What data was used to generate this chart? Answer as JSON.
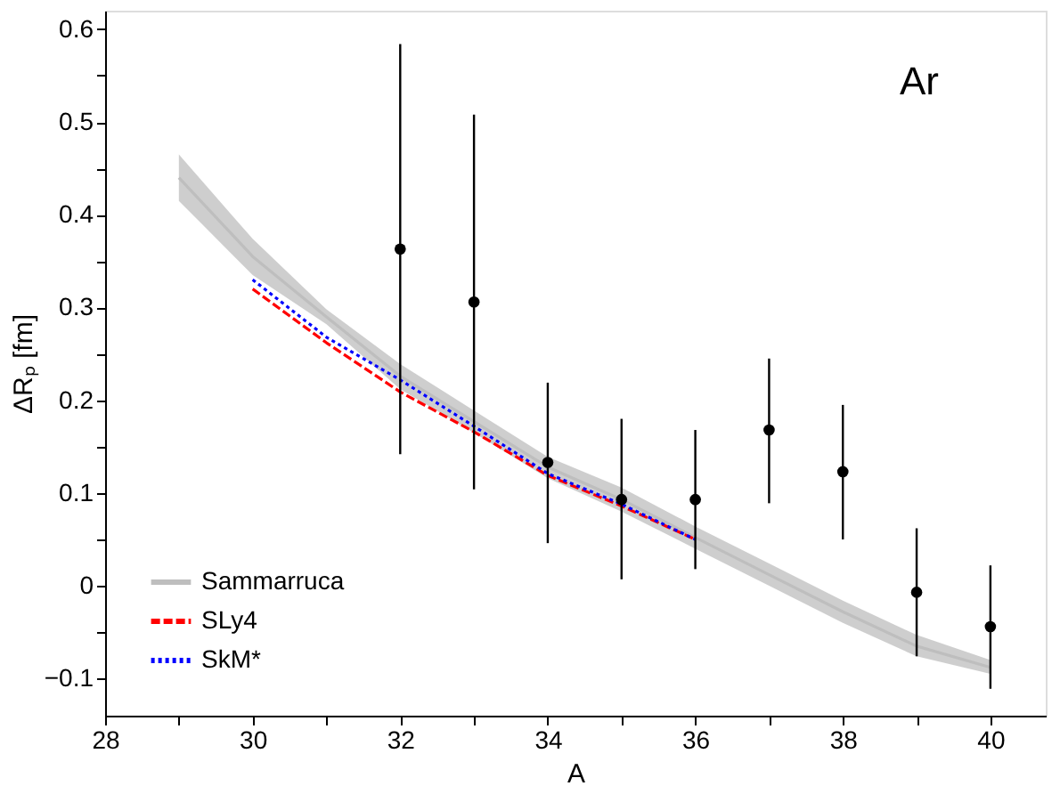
{
  "chart_data": {
    "type": "line",
    "xlabel": "A",
    "ylabel": "ΔRₚ [fm]",
    "annotations": [
      "Ar"
    ],
    "xlim": [
      28,
      40.75
    ],
    "ylim": [
      -0.14,
      0.62
    ],
    "xticks": [
      28,
      {
        "value": 29,
        "label": null
      },
      30,
      {
        "value": 31,
        "label": null
      },
      32,
      {
        "value": 33,
        "label": null
      },
      34,
      {
        "value": 35,
        "label": null
      },
      36,
      {
        "value": 37,
        "label": null
      },
      38,
      {
        "value": 39,
        "label": null
      },
      40
    ],
    "yticks": [
      -0.1,
      {
        "value": -0.05,
        "label": null
      },
      0,
      {
        "value": 0.05,
        "label": null
      },
      0.1,
      {
        "value": 0.15,
        "label": null
      },
      0.2,
      {
        "value": 0.25,
        "label": null
      },
      0.3,
      {
        "value": 0.35,
        "label": null
      },
      0.4,
      {
        "value": 0.45,
        "label": null
      },
      0.5,
      {
        "value": 0.55,
        "label": null
      },
      0.6
    ],
    "grid": false,
    "legend": "bottom left",
    "series": [
      {
        "name": "Sammarruca",
        "color": "#bebebe",
        "x": [
          29,
          30,
          31,
          32,
          33,
          34,
          35,
          36,
          37,
          38,
          39,
          40
        ],
        "values": [
          0.44,
          0.355,
          0.29,
          0.226,
          0.177,
          0.128,
          0.093,
          0.052,
          0.012,
          -0.028,
          -0.065,
          -0.088
        ],
        "lower": [
          0.415,
          0.335,
          0.282,
          0.212,
          0.165,
          0.116,
          0.08,
          0.04,
          0.0,
          -0.04,
          -0.076,
          -0.095
        ],
        "upper": [
          0.465,
          0.374,
          0.298,
          0.239,
          0.189,
          0.139,
          0.106,
          0.064,
          0.024,
          -0.016,
          -0.053,
          -0.08
        ]
      },
      {
        "name": "SLy4",
        "color": "#ff0000",
        "line_style": "dashed",
        "x": [
          30,
          31,
          32,
          33,
          34,
          35,
          36
        ],
        "values": [
          0.32,
          0.262,
          0.209,
          0.166,
          0.119,
          0.086,
          0.05
        ]
      },
      {
        "name": "SkM*",
        "color": "#0000ff",
        "line_style": "dotted",
        "x": [
          30,
          31,
          32,
          33,
          34,
          35,
          36
        ],
        "values": [
          0.33,
          0.268,
          0.222,
          0.172,
          0.121,
          0.088,
          0.05
        ]
      },
      {
        "type": "scatter",
        "color": "#000000",
        "marker": "circle",
        "x": [
          32,
          33,
          34,
          35,
          36,
          37,
          38,
          39,
          40
        ],
        "values": [
          0.363,
          0.306,
          0.133,
          0.093,
          0.093,
          0.168,
          0.123,
          -0.007,
          -0.044
        ],
        "errors": [
          [
            0.142,
            0.584
          ],
          [
            0.104,
            0.508
          ],
          [
            0.046,
            0.219
          ],
          [
            0.007,
            0.18
          ],
          [
            0.018,
            0.168
          ],
          [
            0.089,
            0.245
          ],
          [
            0.05,
            0.195
          ],
          [
            -0.076,
            0.062
          ],
          [
            -0.111,
            0.022
          ]
        ]
      }
    ]
  }
}
